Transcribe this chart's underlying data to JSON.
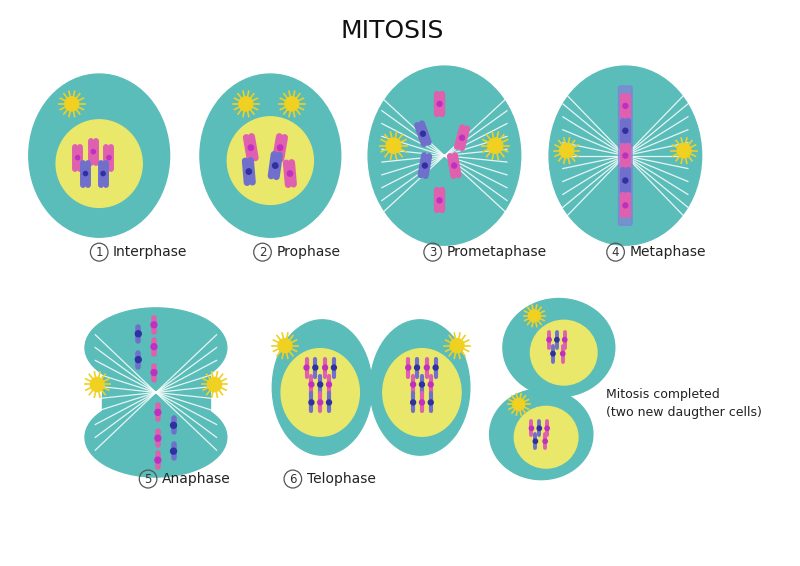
{
  "title": "MITOSIS",
  "title_fontsize": 18,
  "bg_color": "#ffffff",
  "cell_color": "#5bbdb9",
  "nucleus_color": "#eae86a",
  "spindle_color": "#ffffff",
  "chromosome_pink": "#e060b0",
  "chromosome_blue": "#7070cc",
  "label_fontsize": 10,
  "number_fontsize": 9,
  "sun_color": "#f0d020",
  "completed_text_1": "Mitosis completed",
  "completed_text_2": "(two new daugther cells)"
}
